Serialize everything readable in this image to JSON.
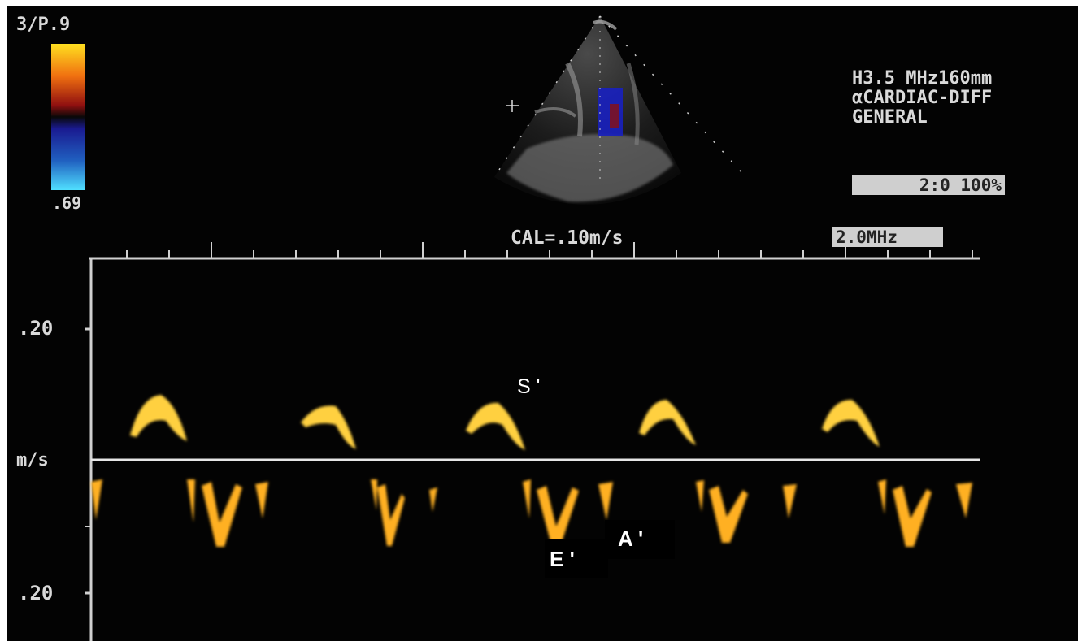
{
  "colorbar": {
    "top_label": "3/P.9",
    "bottom_label": ".69",
    "colors": {
      "top": "#ffe020",
      "mid": "#a01010",
      "low": "#2020a0",
      "bottom": "#40d0ff"
    }
  },
  "settings": {
    "line1": "H3.5 MHz160mm",
    "line2": "αCARDIAC-DIFF",
    "line3": "GENERAL",
    "zoom_box": "2:0 100%",
    "freq_box": "2.0MHz"
  },
  "calibration": "CAL=.10m/s",
  "axis": {
    "upper_tick": ".20",
    "unit": "m/s",
    "lower_tick": ".20"
  },
  "wave_labels": {
    "s_prime": "S '",
    "e_prime": "E '",
    "a_prime": "A '"
  },
  "colors": {
    "background": "#030303",
    "text": "#d9d9d9",
    "doppler": "#ffd030"
  }
}
